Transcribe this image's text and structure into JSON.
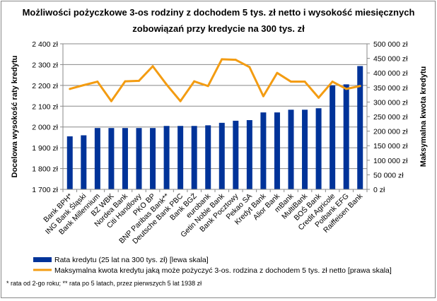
{
  "chart_data": {
    "type": "bar+line",
    "title_lines": [
      "Możliwości pożyczkowe 3-os rodziny z dochodem 5 tys. zł netto i wysokość miesięcznych",
      "zobowiązań przy kredycie na 300 tys. zł"
    ],
    "ylabel_left": "Docelowa wysokość raty kredytu",
    "ylabel_right": "Maksymalna kwota kredytu",
    "ylim_left": [
      1700,
      2400
    ],
    "ylim_right": [
      0,
      500000
    ],
    "yticks_left": [
      "1 700 zł",
      "1 800 zł",
      "1 900 zł",
      "2 000 zł",
      "2 100 zł",
      "2 200 zł",
      "2 300 zł",
      "2 400 zł"
    ],
    "yticks_right": [
      "0 zł",
      "50 000 zł",
      "100 000 zł",
      "150 000 zł",
      "200 000 zł",
      "250 000 zł",
      "300 000 zł",
      "350 000 zł",
      "400 000 zł",
      "450 000 zł",
      "500 000 zł"
    ],
    "grid": true,
    "legend_position": "bottom",
    "categories": [
      "Bank BPH*",
      "ING Bank Śląski",
      "Bank Millennium",
      "BZ WBK",
      "Nordea Bank",
      "Citi Handlowy",
      "PKO BP",
      "BNP Paribas Bank**",
      "Deutsche Bank PBC",
      "Bank BGŻ",
      "eurobank",
      "Getin Noble Bank",
      "Bank Pocztowy",
      "Pekao SA",
      "Kredyt Bank",
      "Alior Bank",
      "mBank",
      "MultiBank",
      "BOŚ Bank",
      "Credit Agricole",
      "Polbank EFG",
      "Raiffeisen Bank"
    ],
    "series": [
      {
        "name": "Rata kredytu (25 lat na 300 tys. zł) [lewa skala]",
        "type": "bar",
        "axis": "left",
        "color": "#003399",
        "values": [
          1955,
          1960,
          1995,
          1995,
          1995,
          1995,
          1995,
          2005,
          2005,
          2005,
          2008,
          2020,
          2030,
          2033,
          2070,
          2070,
          2083,
          2083,
          2090,
          2200,
          2205,
          2293
        ]
      },
      {
        "name": "Maksymalna kwota kredytu  jaką może pożyczyć 3-os. rodzina z dochodem  5 tys. zł netto [prawa skala]",
        "type": "line",
        "axis": "right",
        "color": "#f39c12",
        "values": [
          345000,
          358000,
          370000,
          303000,
          371000,
          373000,
          423000,
          360000,
          303000,
          371000,
          355000,
          447000,
          445000,
          420000,
          320000,
          400000,
          370000,
          370000,
          315000,
          370000,
          345000,
          355000
        ]
      }
    ],
    "footnote": "* rata od 2-go roku; ** rata po 5 latach, przez pierwszych 5 lat  1938 zł"
  }
}
